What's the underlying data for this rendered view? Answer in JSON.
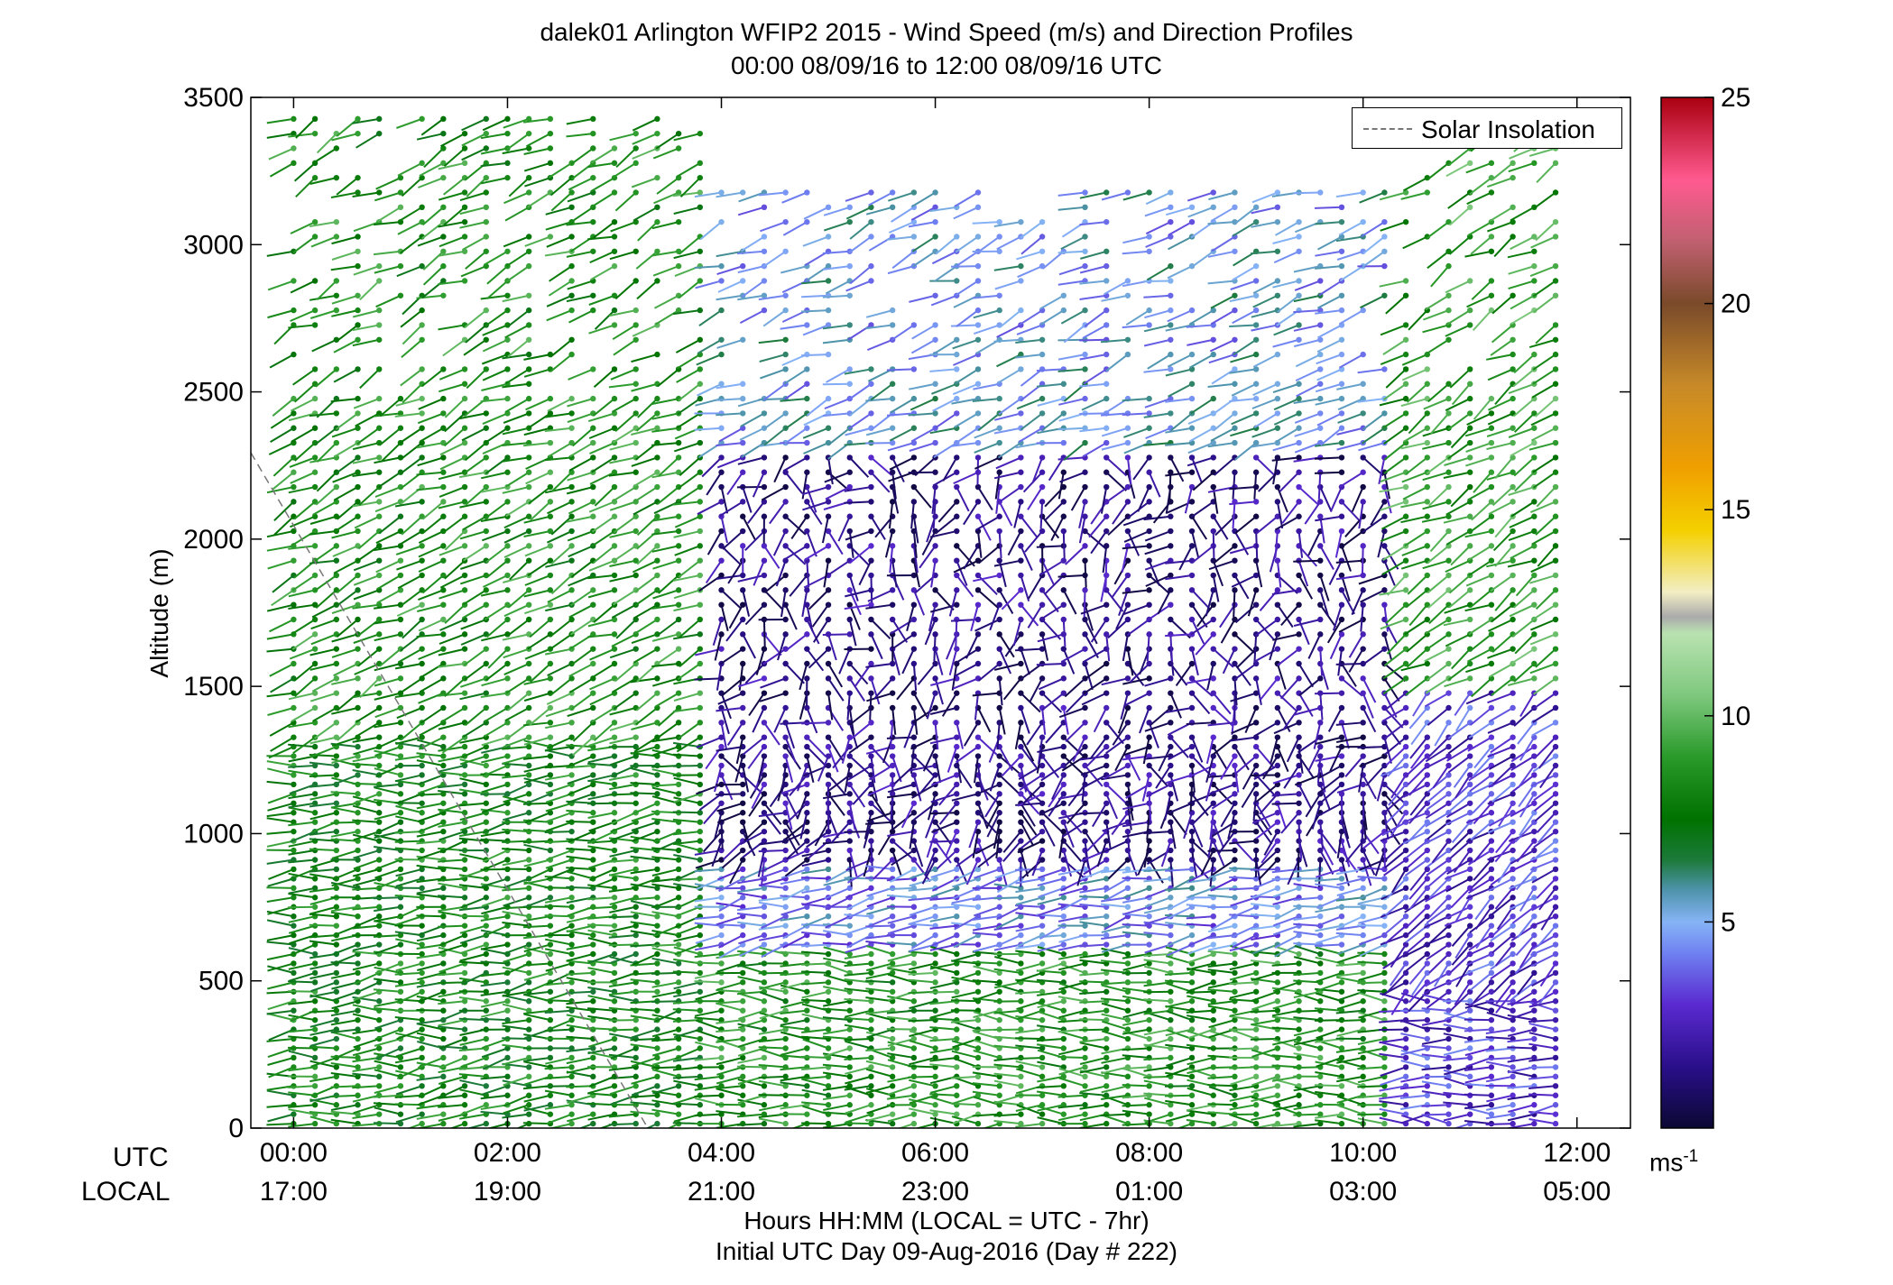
{
  "title": {
    "line1": "dalek01 Arlington WFIP2 2015 - Wind Speed (m/s) and Direction Profiles",
    "line2": "00:00 08/09/16 to 12:00 08/09/16  UTC"
  },
  "xaxis": {
    "label": "Hours HH:MM  (LOCAL = UTC - 7hr)",
    "sublabel": "Initial UTC Day 09-Aug-2016 (Day # 222)",
    "utc_row_label": "UTC",
    "local_row_label": "LOCAL",
    "utc_ticks": [
      "00:00",
      "02:00",
      "04:00",
      "06:00",
      "08:00",
      "10:00",
      "12:00"
    ],
    "local_ticks": [
      "17:00",
      "19:00",
      "21:00",
      "23:00",
      "01:00",
      "03:00",
      "05:00"
    ]
  },
  "yaxis": {
    "label": "Altitude (m)",
    "ticks": [
      "0",
      "500",
      "1000",
      "1500",
      "2000",
      "2500",
      "3000",
      "3500"
    ]
  },
  "legend": {
    "label": "Solar Insolation"
  },
  "colorbar": {
    "unit_base": "ms",
    "unit_exp": "-1",
    "ticks": [
      "5",
      "10",
      "15",
      "20",
      "25"
    ],
    "range": [
      0,
      25
    ],
    "stops": [
      {
        "v": 0,
        "c": "#0b0833"
      },
      {
        "v": 1.5,
        "c": "#2a0f8a"
      },
      {
        "v": 3,
        "c": "#5a2ad0"
      },
      {
        "v": 4.2,
        "c": "#6e7ef0"
      },
      {
        "v": 5,
        "c": "#86b4f6"
      },
      {
        "v": 5.8,
        "c": "#4c92a8"
      },
      {
        "v": 6.5,
        "c": "#1c7a3a"
      },
      {
        "v": 7.5,
        "c": "#007200"
      },
      {
        "v": 9,
        "c": "#2a9a2a"
      },
      {
        "v": 10.5,
        "c": "#7ec87e"
      },
      {
        "v": 12,
        "c": "#b9e2b0"
      },
      {
        "v": 12.4,
        "c": "#aaaaaa"
      },
      {
        "v": 13,
        "c": "#f2eec4"
      },
      {
        "v": 14.5,
        "c": "#f4d000"
      },
      {
        "v": 16,
        "c": "#f0a000"
      },
      {
        "v": 18,
        "c": "#c88a28"
      },
      {
        "v": 20,
        "c": "#7a4a2a"
      },
      {
        "v": 21.5,
        "c": "#c06070"
      },
      {
        "v": 23,
        "c": "#ff5a90"
      },
      {
        "v": 25,
        "c": "#aa0010"
      }
    ]
  },
  "chart_data": {
    "type": "wind barb profile (height-time)",
    "title": "dalek01 Arlington WFIP2 2015 - Wind Speed (m/s) and Direction Profiles",
    "subtitle": "00:00 08/09/16 to 12:00 08/09/16  UTC",
    "xlabel": "Hours HH:MM  (LOCAL = UTC - 7hr)",
    "ylabel": "Altitude (m)",
    "xlim_hours_utc": [
      -0.4,
      12.5
    ],
    "ylim": [
      0,
      3500
    ],
    "time_range_hours_utc": [
      0,
      11.9
    ],
    "altitude_range_m": [
      0,
      3450
    ],
    "color_scale_ms": [
      0,
      25
    ],
    "regimes": [
      {
        "time": [
          0,
          4
        ],
        "alt": [
          0,
          1300
        ],
        "speed_ms": 8,
        "dir_deg": 265
      },
      {
        "time": [
          0,
          4
        ],
        "alt": [
          1300,
          3500
        ],
        "speed_ms": 8.5,
        "dir_deg": 245
      },
      {
        "time": [
          4,
          10.3
        ],
        "alt": [
          0,
          600
        ],
        "speed_ms": 8.5,
        "dir_deg": 270
      },
      {
        "time": [
          4,
          10.3
        ],
        "alt": [
          600,
          900
        ],
        "speed_ms": 4.5,
        "dir_deg": 260
      },
      {
        "time": [
          4,
          10.3
        ],
        "alt": [
          900,
          2300
        ],
        "speed_ms": 1.5,
        "dir_deg": 200
      },
      {
        "time": [
          4,
          10.3
        ],
        "alt": [
          2300,
          3200
        ],
        "speed_ms": 5,
        "dir_deg": 250
      },
      {
        "time": [
          10.3,
          12
        ],
        "alt": [
          0,
          450
        ],
        "speed_ms": 3,
        "dir_deg": 270
      },
      {
        "time": [
          10.3,
          12
        ],
        "alt": [
          450,
          1500
        ],
        "speed_ms": 3,
        "dir_deg": 230
      },
      {
        "time": [
          10.3,
          12
        ],
        "alt": [
          1500,
          3500
        ],
        "speed_ms": 9,
        "dir_deg": 240
      }
    ],
    "solar_insolation_line": {
      "from": {
        "time_utc": -0.4,
        "alt_m": 2300
      },
      "to": {
        "time_utc": 3.5,
        "alt_m": 0
      }
    }
  }
}
